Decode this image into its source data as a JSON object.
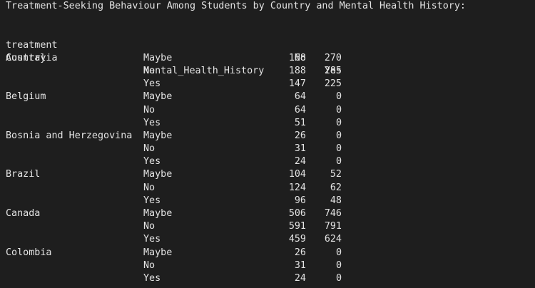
{
  "title": "Treatment-Seeking Behaviour Among Students by Country and Mental Health History:",
  "header": {
    "columns_name": "treatment",
    "col_no": "No",
    "col_yes": "Yes",
    "index_country": "Country",
    "index_mh": "Mental_Health_History"
  },
  "rows": [
    {
      "country": "Australia",
      "mh": "Maybe",
      "no": "168",
      "yes": "270"
    },
    {
      "country": "",
      "mh": "No",
      "no": "188",
      "yes": "285"
    },
    {
      "country": "",
      "mh": "Yes",
      "no": "147",
      "yes": "225"
    },
    {
      "country": "Belgium",
      "mh": "Maybe",
      "no": "64",
      "yes": "0"
    },
    {
      "country": "",
      "mh": "No",
      "no": "64",
      "yes": "0"
    },
    {
      "country": "",
      "mh": "Yes",
      "no": "51",
      "yes": "0"
    },
    {
      "country": "Bosnia and Herzegovina",
      "mh": "Maybe",
      "no": "26",
      "yes": "0"
    },
    {
      "country": "",
      "mh": "No",
      "no": "31",
      "yes": "0"
    },
    {
      "country": "",
      "mh": "Yes",
      "no": "24",
      "yes": "0"
    },
    {
      "country": "Brazil",
      "mh": "Maybe",
      "no": "104",
      "yes": "52"
    },
    {
      "country": "",
      "mh": "No",
      "no": "124",
      "yes": "62"
    },
    {
      "country": "",
      "mh": "Yes",
      "no": "96",
      "yes": "48"
    },
    {
      "country": "Canada",
      "mh": "Maybe",
      "no": "506",
      "yes": "746"
    },
    {
      "country": "",
      "mh": "No",
      "no": "591",
      "yes": "791"
    },
    {
      "country": "",
      "mh": "Yes",
      "no": "459",
      "yes": "624"
    },
    {
      "country": "Colombia",
      "mh": "Maybe",
      "no": "26",
      "yes": "0"
    },
    {
      "country": "",
      "mh": "No",
      "no": "31",
      "yes": "0"
    },
    {
      "country": "",
      "mh": "Yes",
      "no": "24",
      "yes": "0"
    }
  ]
}
